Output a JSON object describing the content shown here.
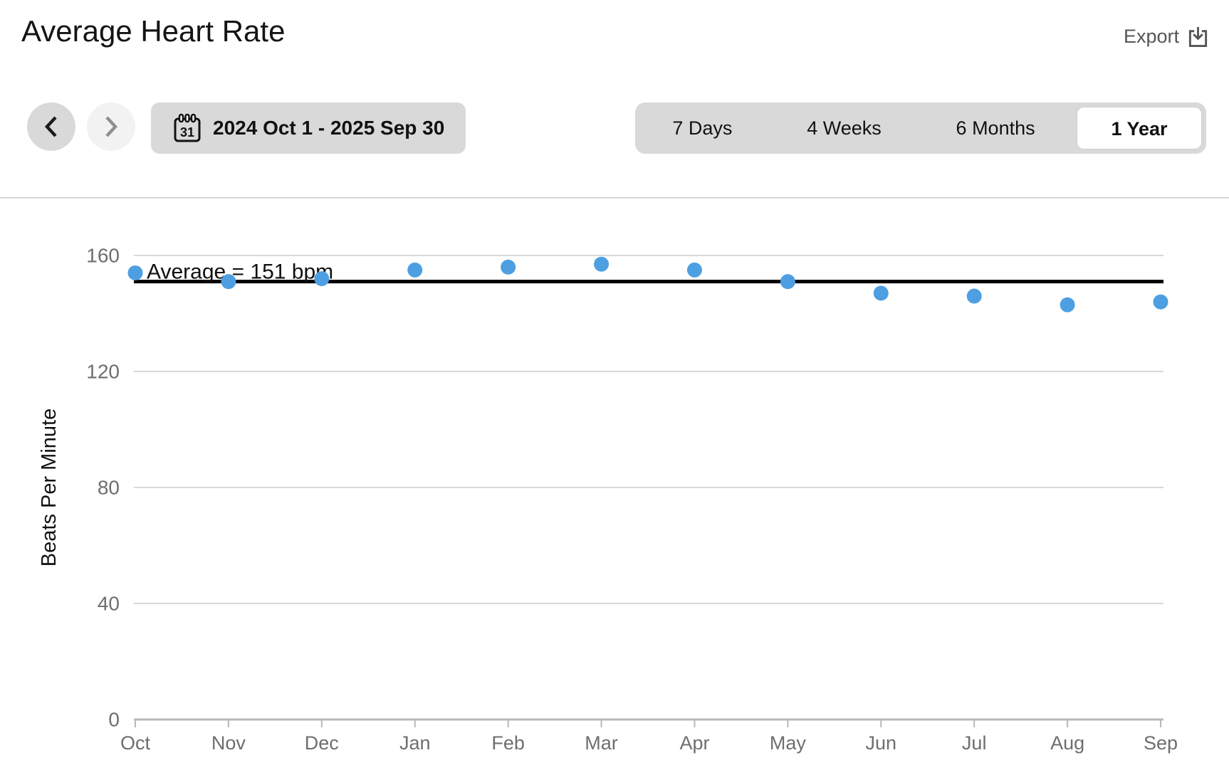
{
  "header": {
    "title": "Average Heart Rate",
    "export_label": "Export"
  },
  "controls": {
    "date_range_label": "2024 Oct 1 - 2025 Sep 30",
    "calendar_day": "31",
    "range_tabs": [
      {
        "label": "7 Days",
        "selected": false
      },
      {
        "label": "4 Weeks",
        "selected": false
      },
      {
        "label": "6 Months",
        "selected": false
      },
      {
        "label": "1 Year",
        "selected": true
      }
    ]
  },
  "chart_data": {
    "type": "scatter",
    "title": "Average Heart Rate",
    "xlabel": "",
    "ylabel": "Beats Per Minute",
    "x_categories": [
      "Oct",
      "Nov",
      "Dec",
      "Jan",
      "Feb",
      "Mar",
      "Apr",
      "May",
      "Jun",
      "Jul",
      "Aug",
      "Sep"
    ],
    "values_bpm": [
      154,
      151,
      152,
      155,
      156,
      157,
      155,
      151,
      147,
      146,
      143,
      144
    ],
    "average_bpm": 151,
    "average_label": "Average = 151 bpm",
    "y_ticks": [
      0,
      40,
      80,
      120,
      160
    ],
    "ylim": [
      0,
      176
    ],
    "grid": true,
    "legend": "none",
    "point_color": "#4d9fe2",
    "average_line_color": "#000000"
  }
}
